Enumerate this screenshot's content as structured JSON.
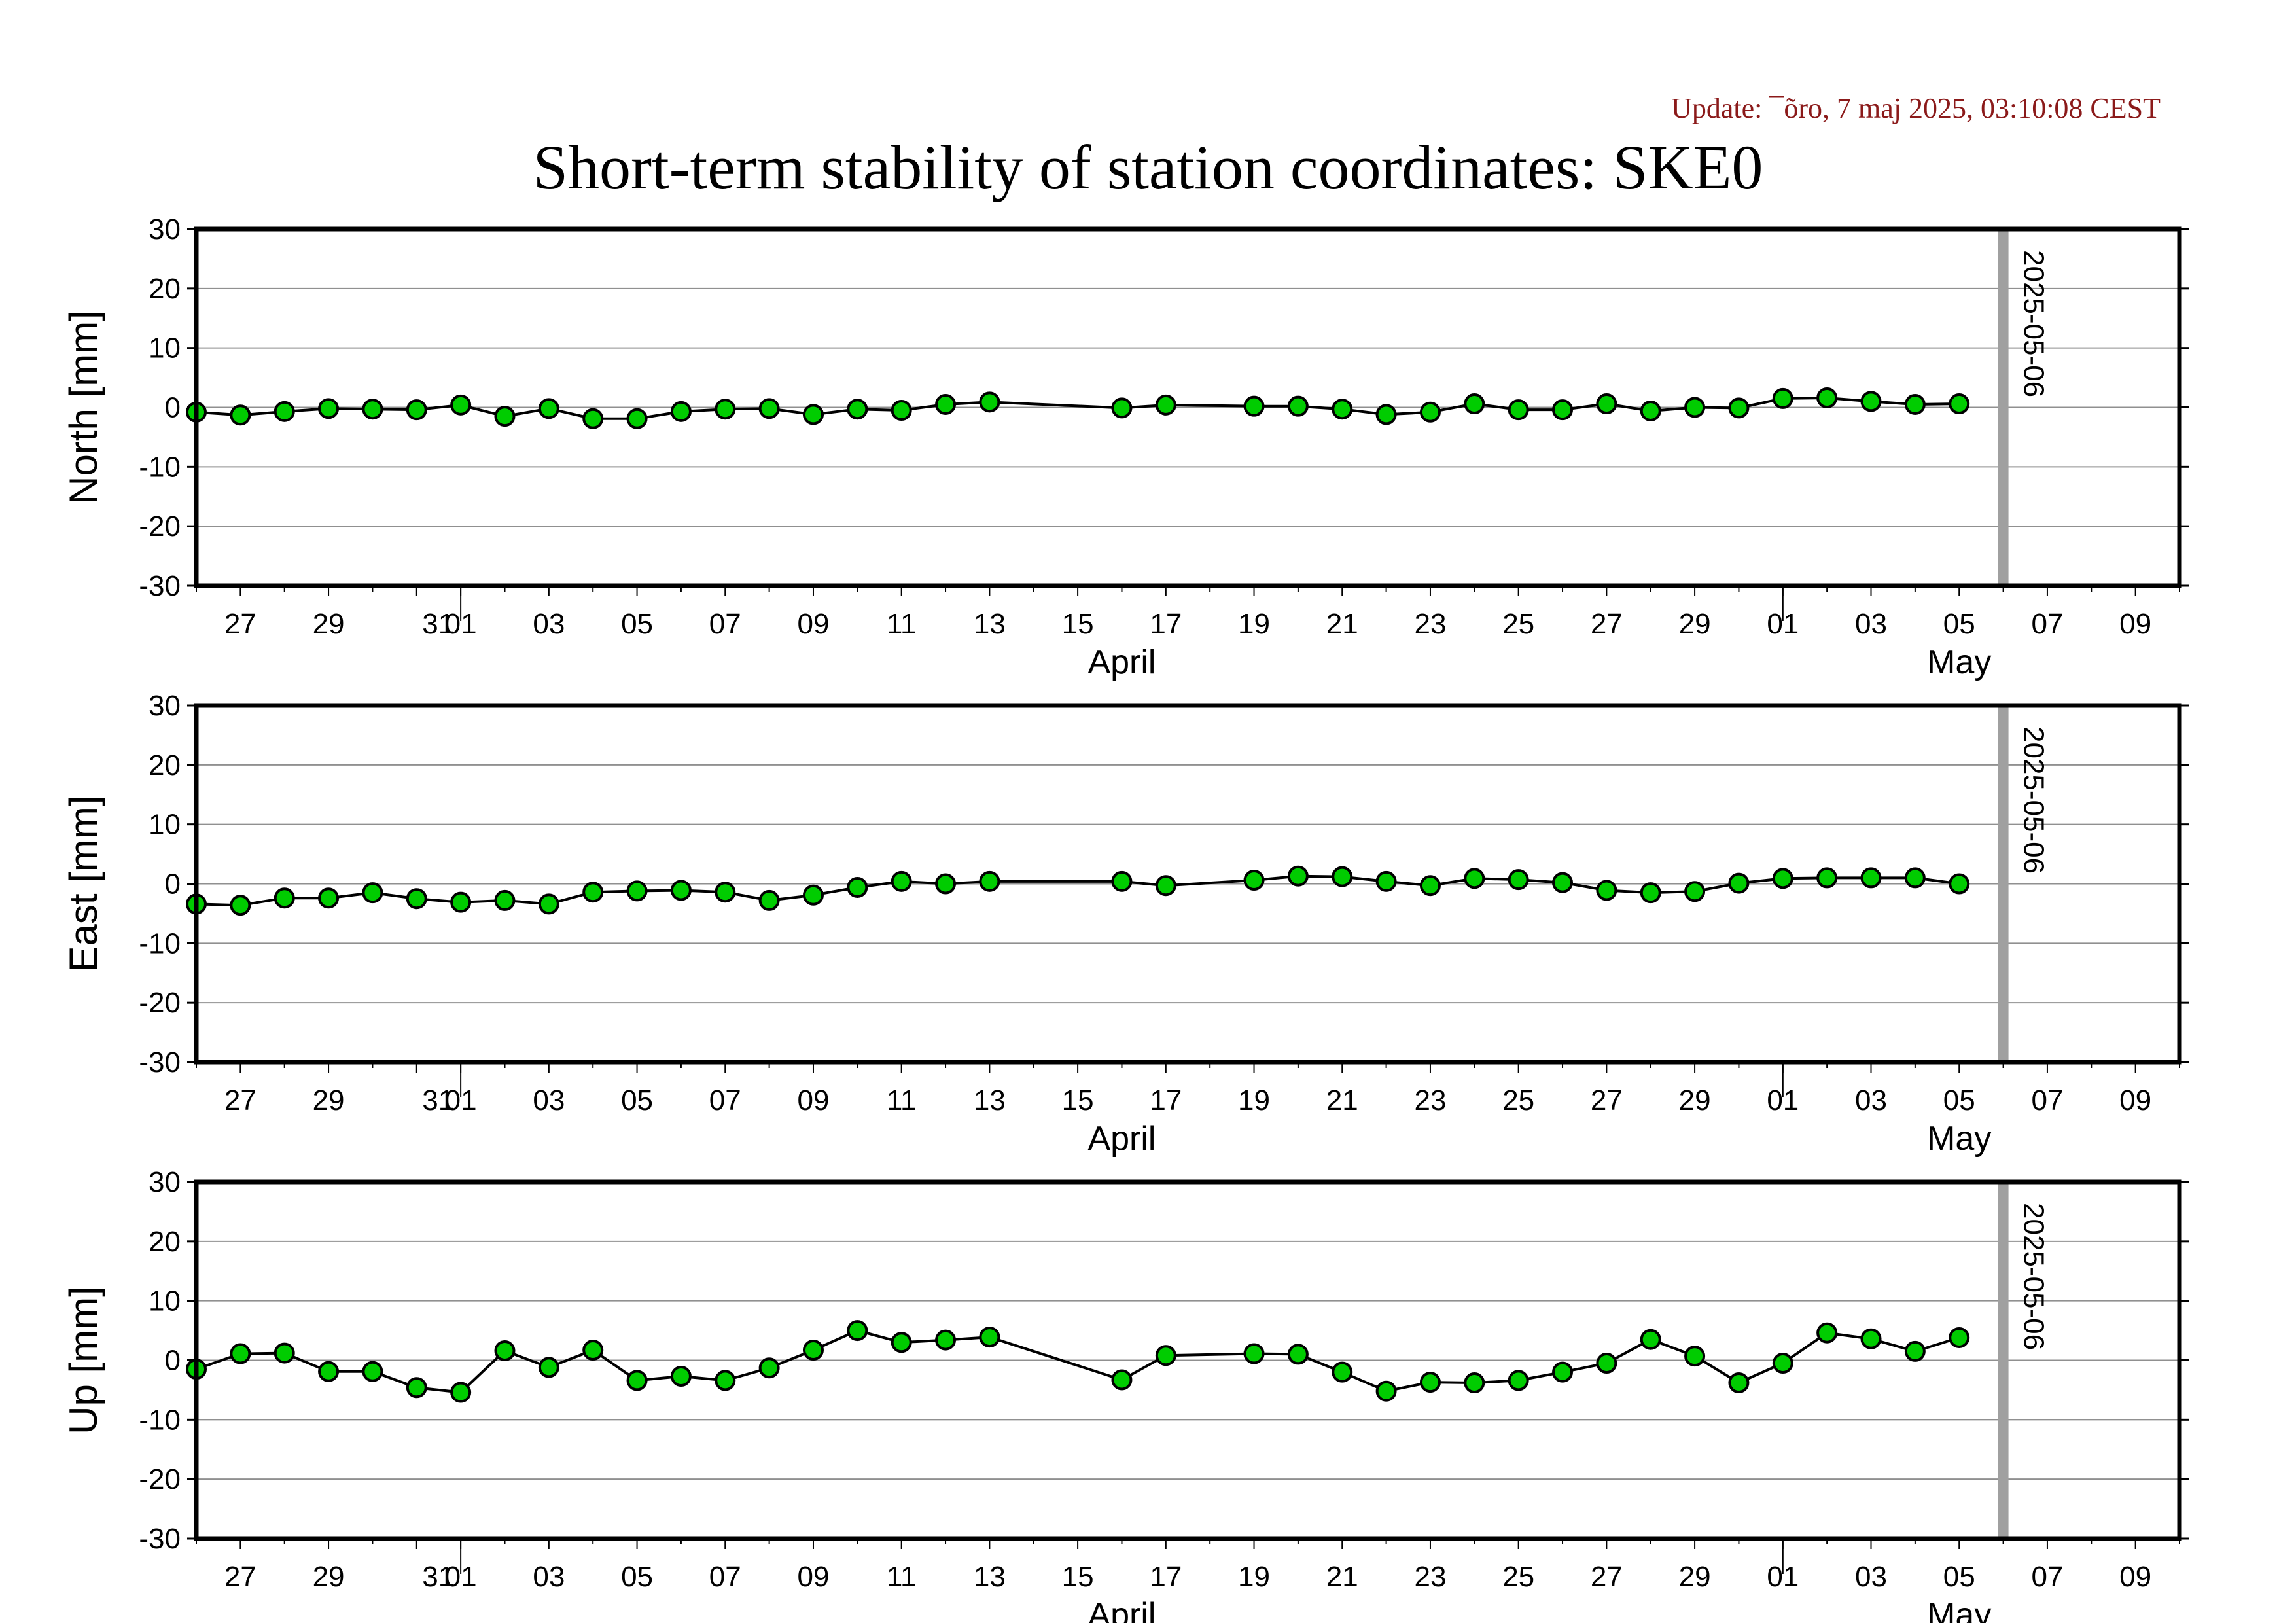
{
  "header": {
    "update_text": "Update: ¯õro, 7 maj 2025, 03:10:08 CEST",
    "title": "Short-term stability of station coordinates: SKE0"
  },
  "chart_data": [
    {
      "type": "line",
      "ylabel": "North [mm]",
      "ylim": [
        -30,
        30
      ],
      "yticks": [
        -30,
        -20,
        -10,
        0,
        10,
        20,
        30
      ],
      "xlim": [
        "2025-03-26",
        "2025-05-10"
      ],
      "x_tick_labels": [
        "27",
        "29",
        "31",
        "01",
        "03",
        "05",
        "07",
        "09",
        "11",
        "13",
        "15",
        "17",
        "19",
        "21",
        "23",
        "25",
        "27",
        "29",
        "01",
        "03",
        "05",
        "07",
        "09"
      ],
      "month_labels": [
        "April",
        "May"
      ],
      "grid": true,
      "reference_line": {
        "date": "2025-05-06",
        "label": "2025-05-06",
        "color": "#a0a0a0"
      },
      "marker_color": "#00cc00",
      "series": [
        {
          "x": [
            "2025-03-26",
            "2025-03-27",
            "2025-03-28",
            "2025-03-29",
            "2025-03-30",
            "2025-03-31",
            "2025-04-01",
            "2025-04-02",
            "2025-04-03",
            "2025-04-04",
            "2025-04-05",
            "2025-04-06",
            "2025-04-07",
            "2025-04-08",
            "2025-04-09",
            "2025-04-10",
            "2025-04-11",
            "2025-04-12",
            "2025-04-13",
            "2025-04-16",
            "2025-04-17",
            "2025-04-19",
            "2025-04-20",
            "2025-04-21",
            "2025-04-22",
            "2025-04-23",
            "2025-04-24",
            "2025-04-25",
            "2025-04-26",
            "2025-04-27",
            "2025-04-28",
            "2025-04-29",
            "2025-04-30",
            "2025-05-01",
            "2025-05-02",
            "2025-05-03",
            "2025-05-04",
            "2025-05-05"
          ],
          "values": [
            -0.8,
            -1.3,
            -0.7,
            -0.2,
            -0.3,
            -0.4,
            0.4,
            -1.5,
            -0.2,
            -1.9,
            -1.9,
            -0.7,
            -0.3,
            -0.2,
            -1.2,
            -0.3,
            -0.5,
            0.5,
            0.9,
            -0.1,
            0.4,
            0.2,
            0.2,
            -0.3,
            -1.2,
            -0.8,
            0.6,
            -0.4,
            -0.4,
            0.6,
            -0.6,
            0.0,
            -0.1,
            1.5,
            1.6,
            1.0,
            0.5,
            0.6
          ]
        }
      ]
    },
    {
      "type": "line",
      "ylabel": "East [mm]",
      "ylim": [
        -30,
        30
      ],
      "yticks": [
        -30,
        -20,
        -10,
        0,
        10,
        20,
        30
      ],
      "xlim": [
        "2025-03-26",
        "2025-05-10"
      ],
      "x_tick_labels": [
        "27",
        "29",
        "31",
        "01",
        "03",
        "05",
        "07",
        "09",
        "11",
        "13",
        "15",
        "17",
        "19",
        "21",
        "23",
        "25",
        "27",
        "29",
        "01",
        "03",
        "05",
        "07",
        "09"
      ],
      "month_labels": [
        "April",
        "May"
      ],
      "grid": true,
      "reference_line": {
        "date": "2025-05-06",
        "label": "2025-05-06",
        "color": "#a0a0a0"
      },
      "marker_color": "#00cc00",
      "series": [
        {
          "x": [
            "2025-03-26",
            "2025-03-27",
            "2025-03-28",
            "2025-03-29",
            "2025-03-30",
            "2025-03-31",
            "2025-04-01",
            "2025-04-02",
            "2025-04-03",
            "2025-04-04",
            "2025-04-05",
            "2025-04-06",
            "2025-04-07",
            "2025-04-08",
            "2025-04-09",
            "2025-04-10",
            "2025-04-11",
            "2025-04-12",
            "2025-04-13",
            "2025-04-16",
            "2025-04-17",
            "2025-04-19",
            "2025-04-20",
            "2025-04-21",
            "2025-04-22",
            "2025-04-23",
            "2025-04-24",
            "2025-04-25",
            "2025-04-26",
            "2025-04-27",
            "2025-04-28",
            "2025-04-29",
            "2025-04-30",
            "2025-05-01",
            "2025-05-02",
            "2025-05-03",
            "2025-05-04",
            "2025-05-05"
          ],
          "values": [
            -3.4,
            -3.6,
            -2.4,
            -2.4,
            -1.5,
            -2.5,
            -3.1,
            -2.8,
            -3.4,
            -1.4,
            -1.2,
            -1.1,
            -1.4,
            -2.8,
            -1.9,
            -0.6,
            0.4,
            0.0,
            0.4,
            0.4,
            -0.3,
            0.6,
            1.3,
            1.2,
            0.4,
            -0.3,
            0.9,
            0.7,
            0.2,
            -1.1,
            -1.5,
            -1.3,
            0.1,
            0.9,
            1.0,
            1.0,
            1.0,
            0.0
          ]
        }
      ]
    },
    {
      "type": "line",
      "ylabel": "Up [mm]",
      "ylim": [
        -30,
        30
      ],
      "yticks": [
        -30,
        -20,
        -10,
        0,
        10,
        20,
        30
      ],
      "xlim": [
        "2025-03-26",
        "2025-05-10"
      ],
      "x_tick_labels": [
        "27",
        "29",
        "31",
        "01",
        "03",
        "05",
        "07",
        "09",
        "11",
        "13",
        "15",
        "17",
        "19",
        "21",
        "23",
        "25",
        "27",
        "29",
        "01",
        "03",
        "05",
        "07",
        "09"
      ],
      "month_labels": [
        "April",
        "May"
      ],
      "grid": true,
      "reference_line": {
        "date": "2025-05-06",
        "label": "2025-05-06",
        "color": "#a0a0a0"
      },
      "marker_color": "#00cc00",
      "series": [
        {
          "x": [
            "2025-03-26",
            "2025-03-27",
            "2025-03-28",
            "2025-03-29",
            "2025-03-30",
            "2025-03-31",
            "2025-04-01",
            "2025-04-02",
            "2025-04-03",
            "2025-04-04",
            "2025-04-05",
            "2025-04-06",
            "2025-04-07",
            "2025-04-08",
            "2025-04-09",
            "2025-04-10",
            "2025-04-11",
            "2025-04-12",
            "2025-04-13",
            "2025-04-16",
            "2025-04-17",
            "2025-04-19",
            "2025-04-20",
            "2025-04-21",
            "2025-04-22",
            "2025-04-23",
            "2025-04-24",
            "2025-04-25",
            "2025-04-26",
            "2025-04-27",
            "2025-04-28",
            "2025-04-29",
            "2025-04-30",
            "2025-05-01",
            "2025-05-02",
            "2025-05-03",
            "2025-05-04",
            "2025-05-05"
          ],
          "values": [
            -1.5,
            1.1,
            1.2,
            -1.9,
            -1.9,
            -4.6,
            -5.4,
            1.6,
            -1.2,
            1.7,
            -3.4,
            -2.7,
            -3.4,
            -1.3,
            1.7,
            5.0,
            3.0,
            3.4,
            3.9,
            -3.3,
            0.8,
            1.1,
            1.0,
            -2.0,
            -5.2,
            -3.7,
            -3.8,
            -3.4,
            -2.0,
            -0.5,
            3.5,
            0.7,
            -3.8,
            -0.5,
            4.6,
            3.6,
            1.5,
            3.8
          ]
        }
      ]
    }
  ]
}
